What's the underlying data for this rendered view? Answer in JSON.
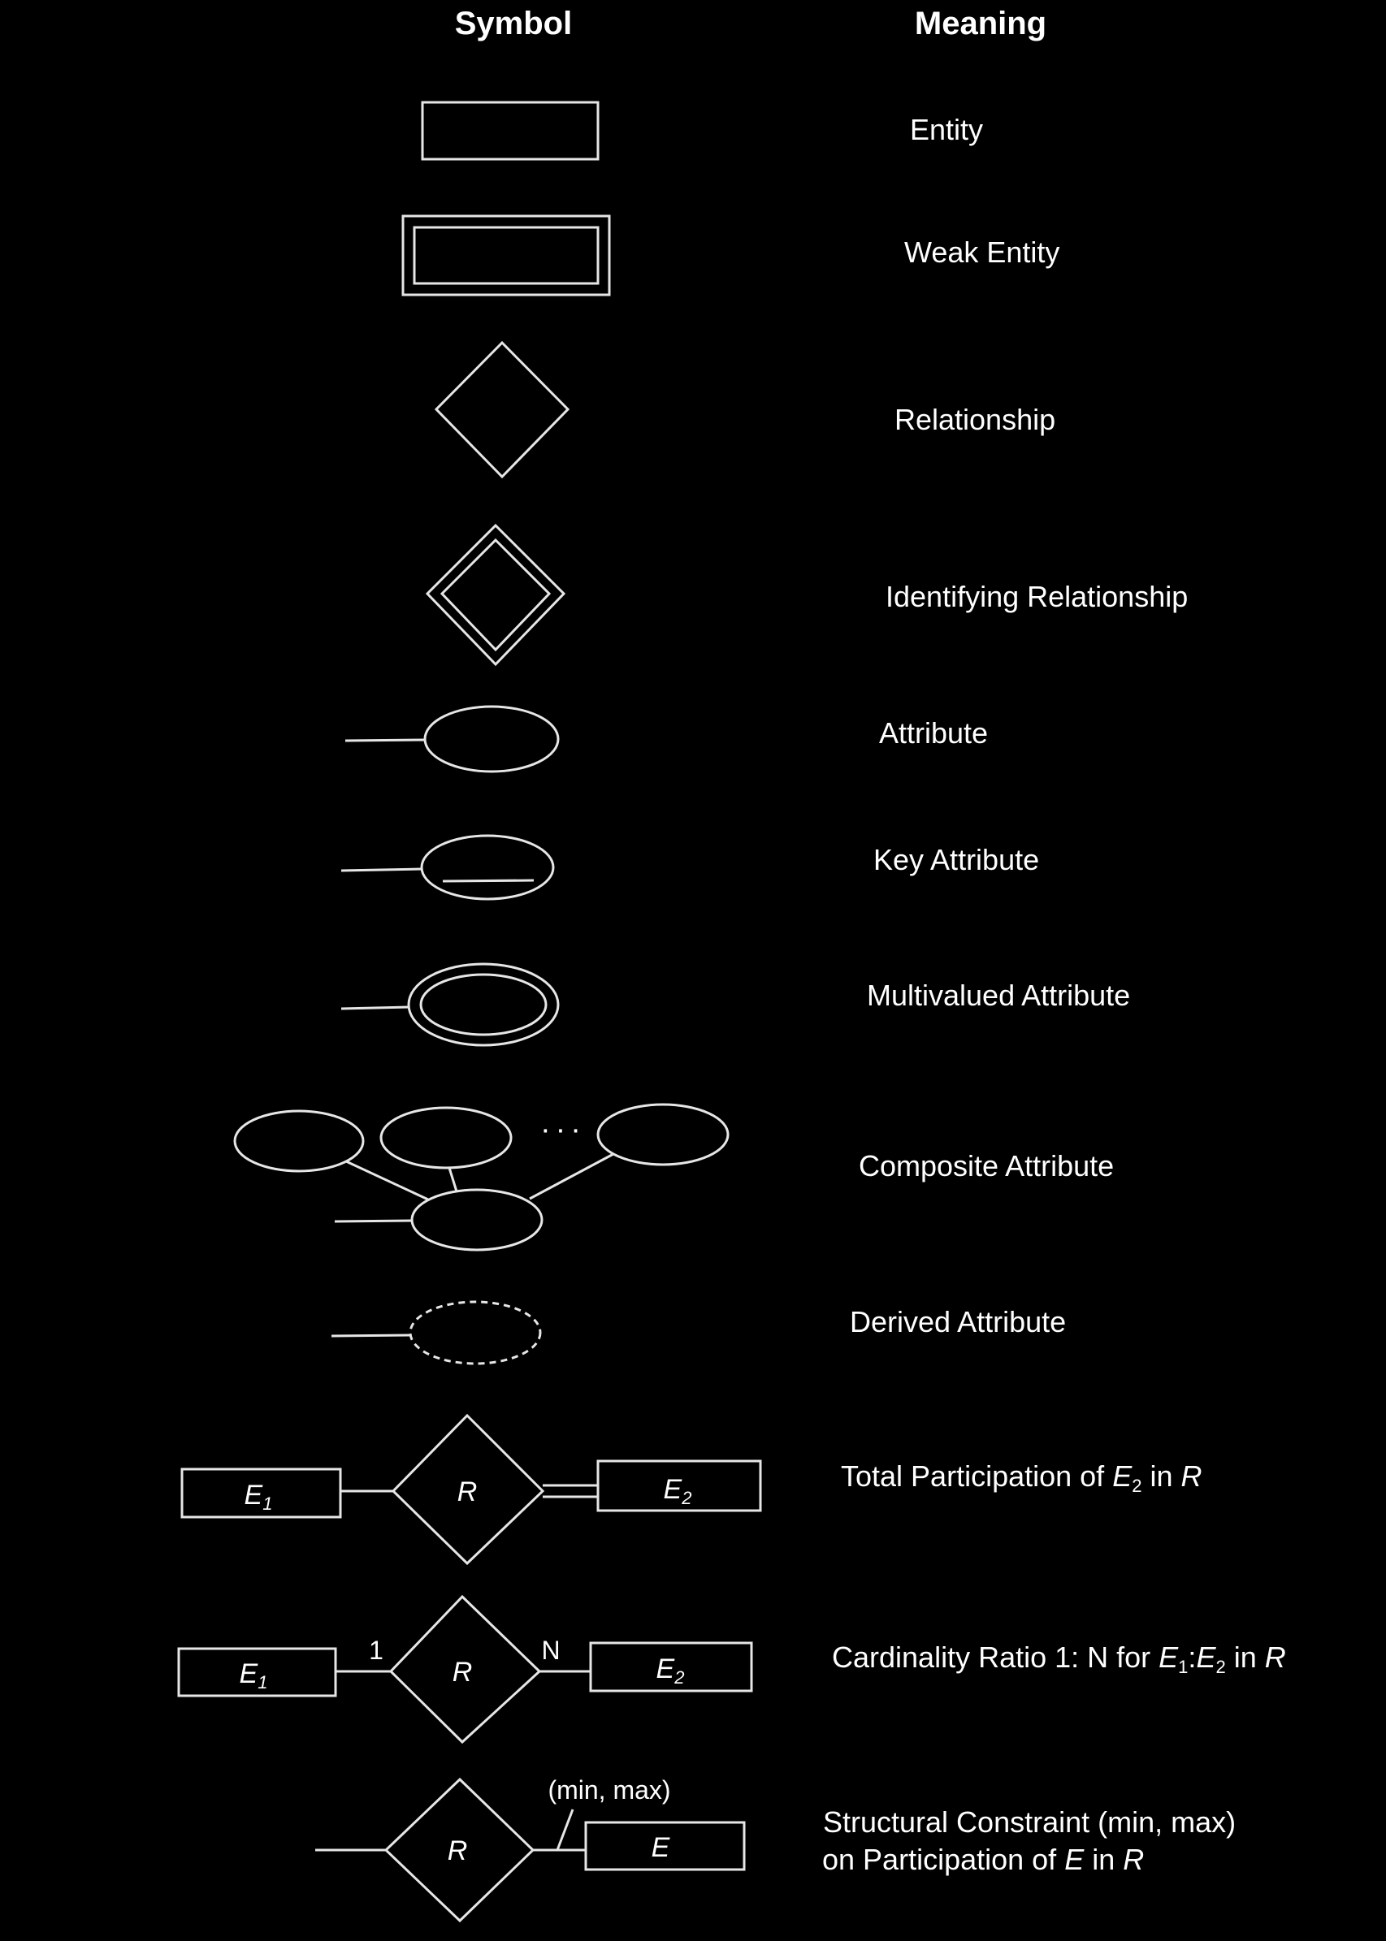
{
  "headers": {
    "symbol": "Symbol",
    "meaning": "Meaning"
  },
  "rows": {
    "entity": {
      "meaning": "Entity"
    },
    "weak_entity": {
      "meaning": "Weak Entity"
    },
    "relationship": {
      "meaning": "Relationship"
    },
    "identifying_relationship": {
      "meaning": "Identifying Relationship"
    },
    "attribute": {
      "meaning": "Attribute"
    },
    "key_attribute": {
      "meaning": "Key Attribute"
    },
    "multivalued_attribute": {
      "meaning": "Multivalued Attribute"
    },
    "composite_attribute": {
      "meaning": "Composite Attribute",
      "ellipsis": "···"
    },
    "derived_attribute": {
      "meaning": "Derived Attribute"
    },
    "total_participation": {
      "meaning_prefix": "Total Participation of ",
      "meaning_entity": "E",
      "meaning_entity_sub": "2",
      "meaning_mid": " in ",
      "meaning_rel": "R",
      "e1": "E",
      "e1_sub": "1",
      "r": "R",
      "e2": "E",
      "e2_sub": "2"
    },
    "cardinality": {
      "meaning_prefix": "Cardinality Ratio 1: N for ",
      "meaning_e1": "E",
      "meaning_e1_sub": "1",
      "meaning_colon": ":",
      "meaning_e2": "E",
      "meaning_e2_sub": "2",
      "meaning_mid": " in ",
      "meaning_rel": "R",
      "e1": "E",
      "e1_sub": "1",
      "r": "R",
      "e2": "E",
      "e2_sub": "2",
      "left_card": "1",
      "right_card": "N"
    },
    "structural_constraint": {
      "meaning_line1": "Structural Constraint (min, max)",
      "meaning_line2_prefix": "on Participation of ",
      "meaning_line2_entity": "E",
      "meaning_line2_mid": " in ",
      "meaning_line2_rel": "R",
      "r": "R",
      "e": "E",
      "minmax": "(min, max)"
    }
  }
}
